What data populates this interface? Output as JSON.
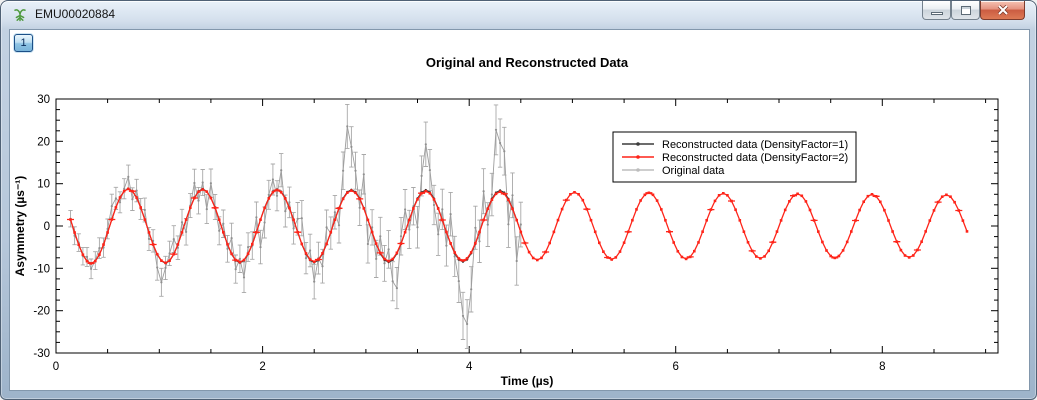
{
  "window": {
    "title": "EMU00020884",
    "icon": "mantid-muon-icon",
    "layer_button": "1",
    "controls": {
      "minimize": "minimize",
      "restore": "restore",
      "close": "close"
    }
  },
  "chart_data": {
    "type": "line",
    "title": "Original and Reconstructed Data",
    "xlabel": "Time (µs)",
    "ylabel": "Asymmetry (µs⁻¹)",
    "xlim": [
      0,
      9.12
    ],
    "ylim": [
      -30,
      30
    ],
    "x_major_ticks": [
      0,
      2,
      4,
      6,
      8
    ],
    "x_tick_labels": [
      "0",
      "2",
      "4",
      "6",
      "8"
    ],
    "x_minor_step": 0.5,
    "y_major_values": [
      -30,
      -20,
      -10,
      0,
      10,
      20,
      30
    ],
    "y_tick_labels": [
      "-30",
      "-20",
      "-10",
      "0",
      "10",
      "20",
      "30"
    ],
    "y_minor_step": 2.5,
    "grid": false,
    "legend": {
      "position": "inside-top-right"
    },
    "signal_model": {
      "description": "damped oscillation y = A·exp(-lambda·t)·sin(2*pi*(t - t_zero)/period); original data = model + noise_offsets[i]*(noise_base + noise_slope*t) with error bars err_base + err_slope*t + err_jitter*|noise_offsets[i]|",
      "amplitude": 8.9,
      "period_us": 0.72,
      "t_zero_us": 0.52,
      "t_start_us": 0.14,
      "dt_us": 0.04
    },
    "series": [
      {
        "role": "reconstructed-df1",
        "name": "Reconstructed data (DensityFactor=1)",
        "color": "#303030",
        "marker": "dot",
        "lambda": 0.013,
        "t_end_us": 4.5
      },
      {
        "role": "reconstructed-df2",
        "name": "Reconstructed data (DensityFactor=2)",
        "color": "#fe2419",
        "marker": "square",
        "lambda": 0.022,
        "t_end_us": 8.82,
        "cap_every": 5
      },
      {
        "role": "original",
        "name": "Original data",
        "color": "#a8a8a8",
        "line_color": "#9d9d9d",
        "marker": "dot",
        "lambda": 0.013,
        "t_end_us": 4.5,
        "noise_base": 0.55,
        "noise_slope": 0.45,
        "err_base": 1.8,
        "err_slope": 0.75,
        "err_jitter": 0.15,
        "noise_offsets": [
          0.3,
          -1.2,
          0.8,
          -0.5,
          1.5,
          -1.8,
          0.2,
          2.1,
          -0.9,
          1.1,
          4.0,
          2.6,
          -1.4,
          0.6,
          3.2,
          -2.2,
          1.8,
          -0.4,
          2.4,
          -1.6,
          0.9,
          -3.1,
          -5.0,
          -1.1,
          1.7,
          3.4,
          -0.7,
          2.2,
          -2.6,
          0.4,
          3.0,
          -1.9,
          1.3,
          -3.5,
          2.8,
          0.1,
          -2.1,
          1.6,
          -0.8,
          2.9,
          -1.5,
          0.7,
          -2.9,
          1.2,
          -0.2,
          2.5,
          -4.5,
          -2.4,
          0.5,
          1.9,
          -1.0,
          3.3,
          -2.0,
          0.8,
          -1.3,
          2.0,
          3.8,
          -0.6,
          1.4,
          -2.7,
          0.3,
          -1.7,
          2.3,
          -0.1,
          1.0,
          -2.3,
          3.6,
          8.5,
          5.5,
          2.7,
          -1.2,
          4.2,
          -3.0,
          0.6,
          -1.8,
          2.1,
          -0.4,
          1.5,
          -2.5,
          -4.0,
          0.9,
          2.6,
          -1.1,
          0.2,
          -3.2,
          1.8,
          5.0,
          2.4,
          -0.7,
          -2.8,
          1.1,
          -1.4,
          3.1,
          -0.3,
          -2.2,
          -5.5,
          -6.5,
          -3.6,
          1.6,
          -0.9,
          2.8,
          -1.6,
          0.4,
          6.0,
          4.5,
          3.9,
          -2.4,
          1.2,
          -3.8,
          0.7
        ]
      }
    ]
  }
}
